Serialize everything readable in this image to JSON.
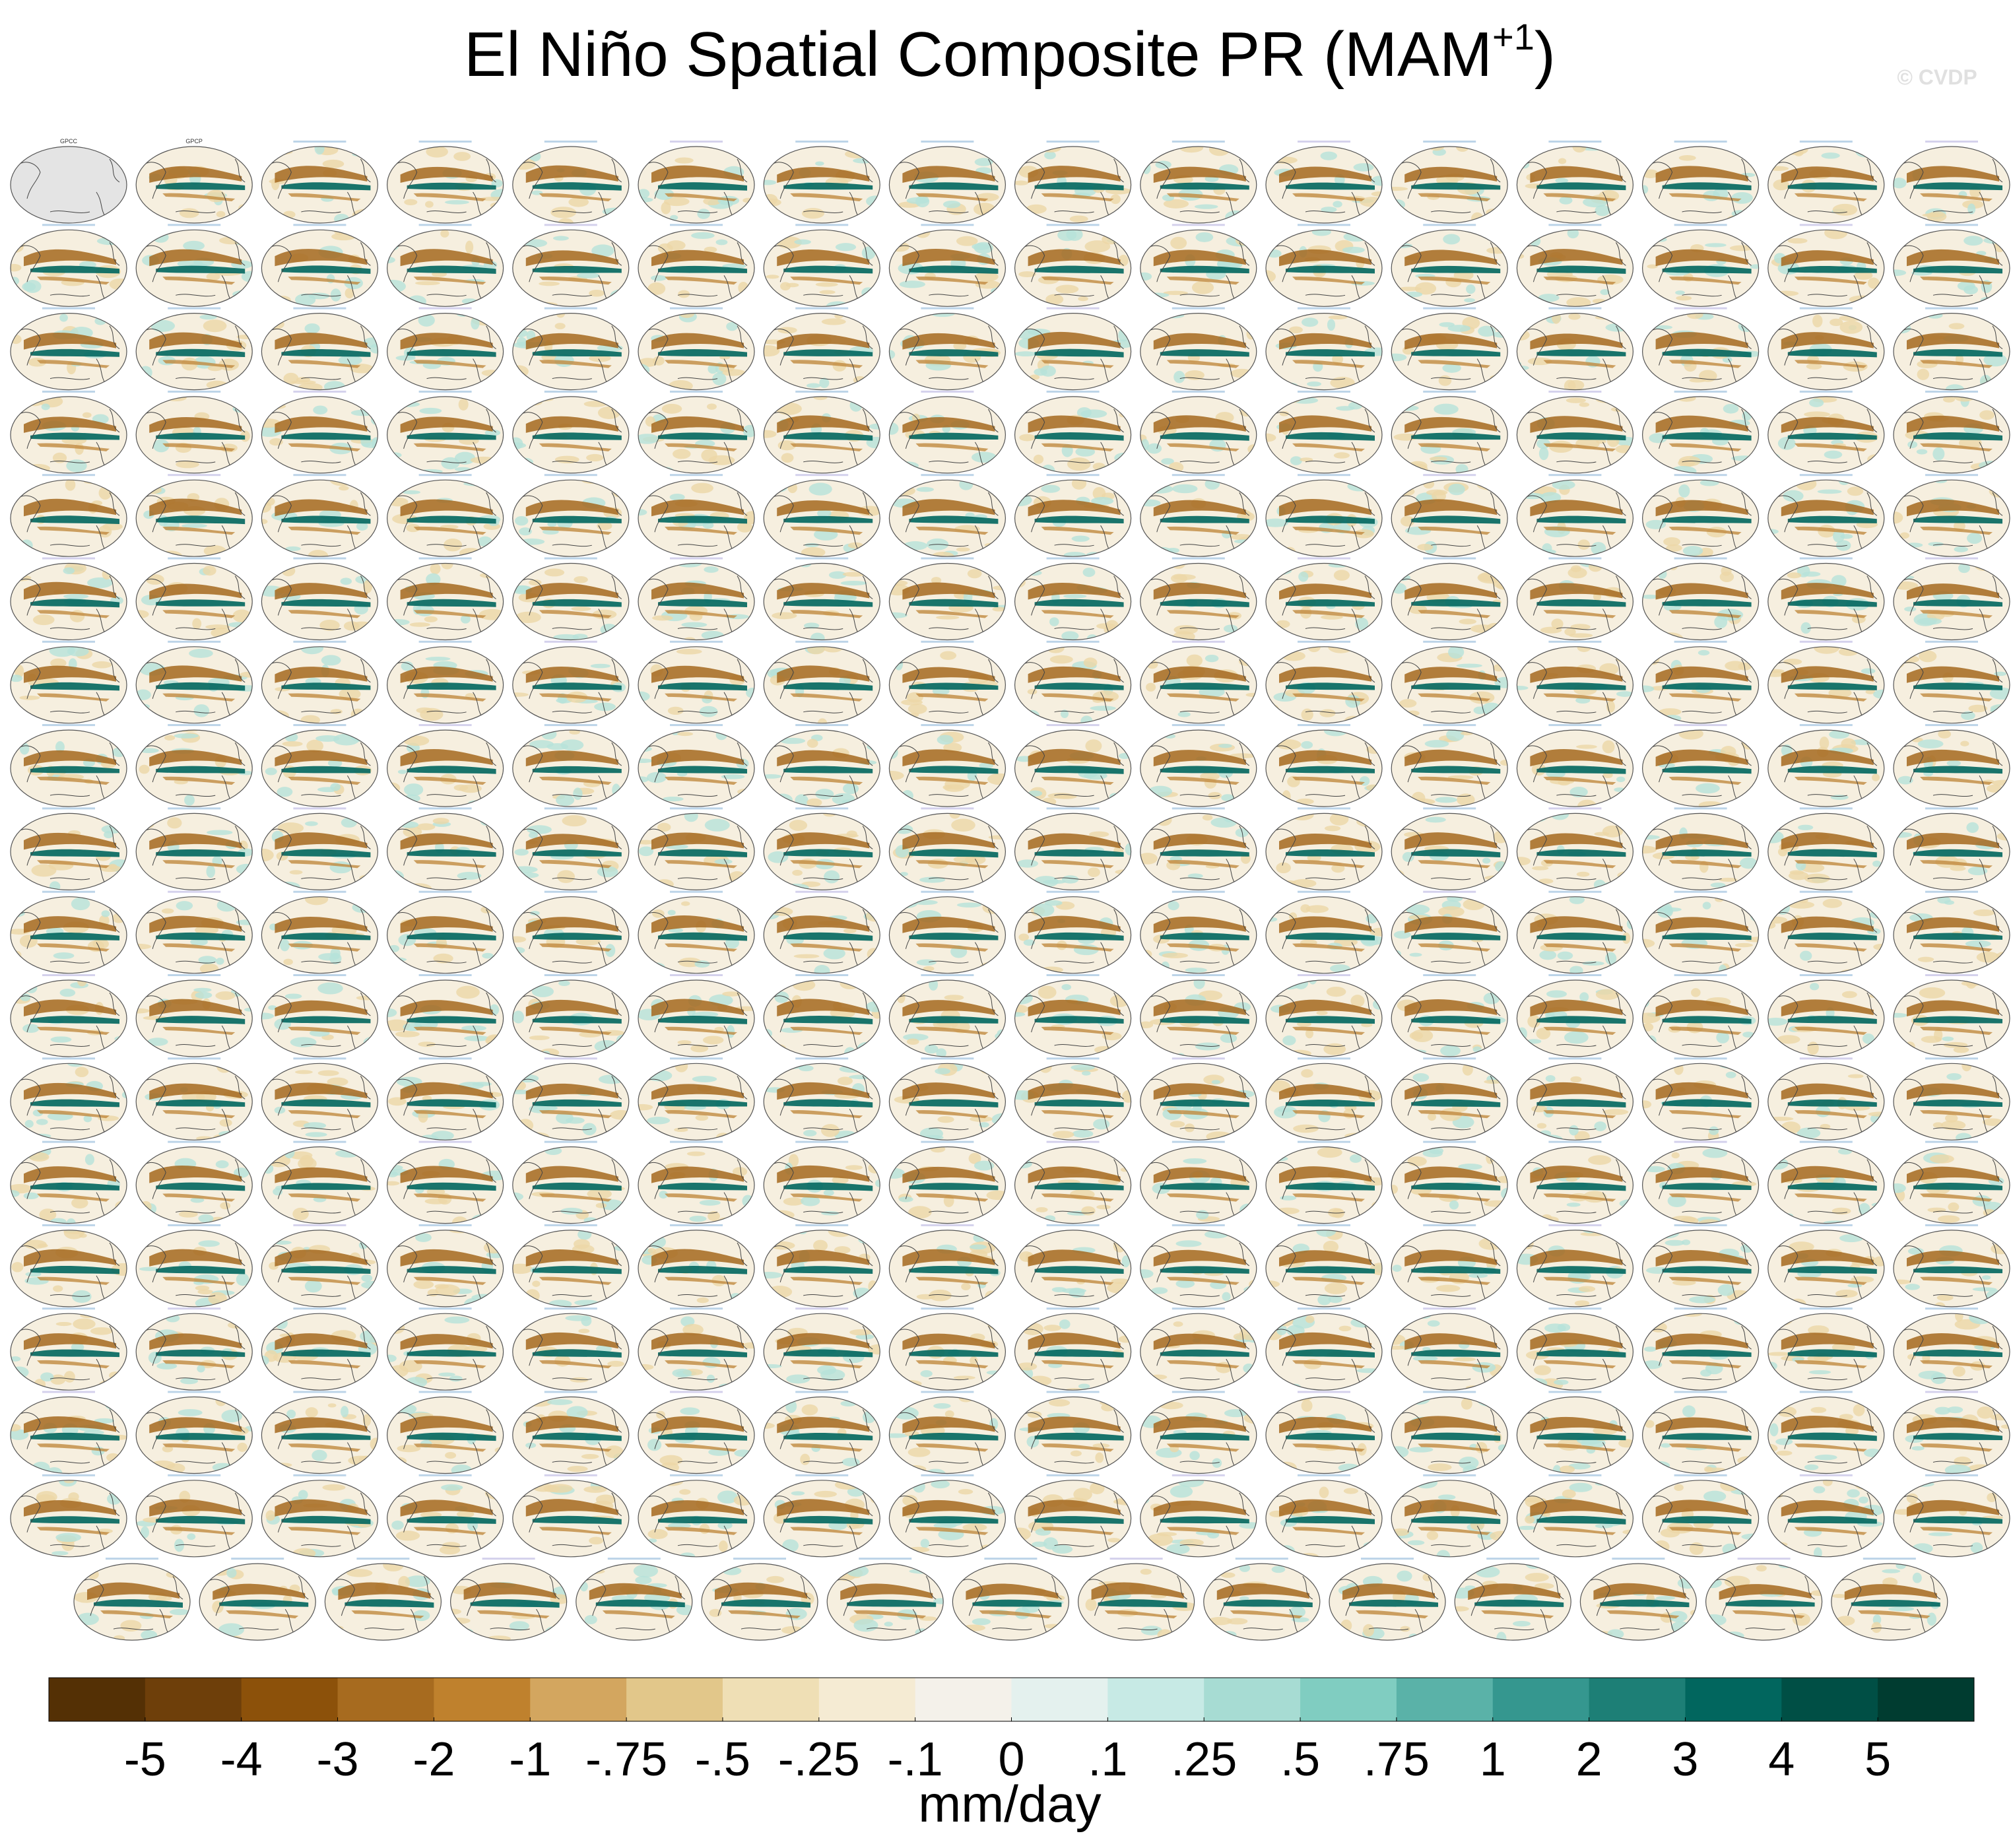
{
  "chart_data": {
    "type": "colorbar",
    "title": "El Niño Spatial Composite PR (MAM",
    "title_superscript": "+1",
    "title_suffix": ")",
    "watermark": "© CVDP",
    "panel_titles": [
      "GPCC",
      "GPCP"
    ],
    "units": "mm/day",
    "levels": [
      -5,
      -4,
      -3,
      -2,
      -1,
      {
        "value": -0.75,
        "label": "-.75"
      },
      {
        "value": -0.5,
        "label": "-.5"
      },
      {
        "value": -0.25,
        "label": "-.25"
      },
      {
        "value": -0.1,
        "label": "-.1"
      },
      0,
      {
        "value": 0.1,
        "label": ".1"
      },
      {
        "value": 0.25,
        "label": ".25"
      },
      {
        "value": 0.5,
        "label": ".5"
      },
      {
        "value": 0.75,
        "label": ".75"
      },
      1,
      2,
      3,
      4,
      5
    ],
    "colors": [
      "#543005",
      "#6e3f0a",
      "#8c510a",
      "#a76b1f",
      "#bf812d",
      "#d3a65f",
      "#e2c78a",
      "#efdfb5",
      "#f5ebd3",
      "#f4f1ea",
      "#e4f1ee",
      "#c7eae5",
      "#a7dcd3",
      "#80cdc1",
      "#5ab2a8",
      "#35978f",
      "#1d7f76",
      "#01665e",
      "#004f45",
      "#003c30"
    ]
  }
}
